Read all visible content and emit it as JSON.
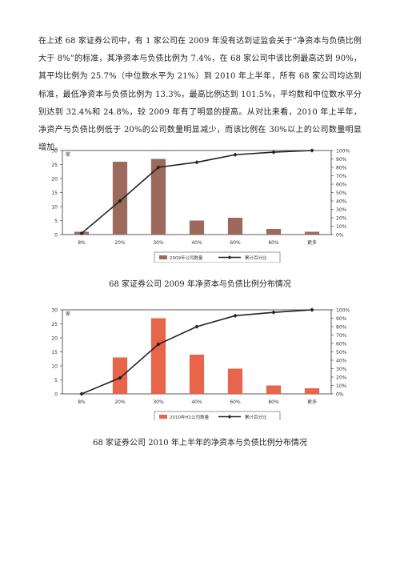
{
  "document": {
    "paragraph": "在上述 68 家证券公司中，有 1 家公司在 2009 年没有达到证监会关于“净资本与负债比例大于 8%”的标准，其净资本与负债比例为 7.4%，在 68 家公司中该比例最高达到 90%，其平均比例为 25.7%（中位数水平为 21%）到 2010 年上半年，所有 68 家公司均达到标准，最低净资本与负债比例为 13.3%，最高比例达到 101.5%，平均数和中位数水平分别达到 32.4%和 24.8%，较 2009 年有了明显的提高。从对比来看，2010 年上半年，净资产与负债比例低于 20%的公司数量明显减少，而该比例在 30%以上的公司数量明显增加。",
    "caption1": "68 家证券公司 2009 年净资本与负债比例分布情况",
    "caption2": "68 家证券公司 2010 年上半年的净资本与负债比例分布情况"
  },
  "chart_data": [
    {
      "type": "bar",
      "categories": [
        "8%",
        "20%",
        "30%",
        "40%",
        "60%",
        "80%",
        "更多"
      ],
      "series": [
        {
          "name": "2009年公司数量",
          "type": "bar",
          "axis": "left",
          "color": "#9b6a5d",
          "values": [
            1,
            26,
            27,
            5,
            6,
            2,
            1
          ]
        },
        {
          "name": "累计百分比",
          "type": "line",
          "axis": "right",
          "color": "#222222",
          "values": [
            1.5,
            40,
            80,
            86,
            95,
            98,
            100
          ]
        }
      ],
      "ylabel": "家",
      "ylim": [
        0,
        30
      ],
      "y_ticks": [
        "0",
        "5",
        "10",
        "15",
        "20",
        "25",
        "30"
      ],
      "y2lim": [
        0,
        100
      ],
      "y2_ticks": [
        "0%",
        "10%",
        "20%",
        "30%",
        "40%",
        "50%",
        "60%",
        "70%",
        "80%",
        "90%",
        "100%"
      ],
      "legend_position": "bottom",
      "grid": false
    },
    {
      "type": "bar",
      "categories": [
        "8%",
        "20%",
        "30%",
        "40%",
        "60%",
        "80%",
        "更多"
      ],
      "series": [
        {
          "name": "2010年H1公司数量",
          "type": "bar",
          "axis": "left",
          "color": "#e8654b",
          "values": [
            0,
            13,
            27,
            14,
            9,
            3,
            2
          ]
        },
        {
          "name": "累计百分比",
          "type": "line",
          "axis": "right",
          "color": "#222222",
          "values": [
            0,
            19,
            59,
            80,
            93,
            97,
            100
          ]
        }
      ],
      "ylabel": "家",
      "ylim": [
        0,
        30
      ],
      "y_ticks": [
        "0",
        "5",
        "10",
        "15",
        "20",
        "25",
        "30"
      ],
      "y2lim": [
        0,
        100
      ],
      "y2_ticks": [
        "0%",
        "10%",
        "20%",
        "30%",
        "40%",
        "50%",
        "60%",
        "70%",
        "80%",
        "90%",
        "100%"
      ],
      "legend_position": "bottom",
      "grid": false
    }
  ]
}
